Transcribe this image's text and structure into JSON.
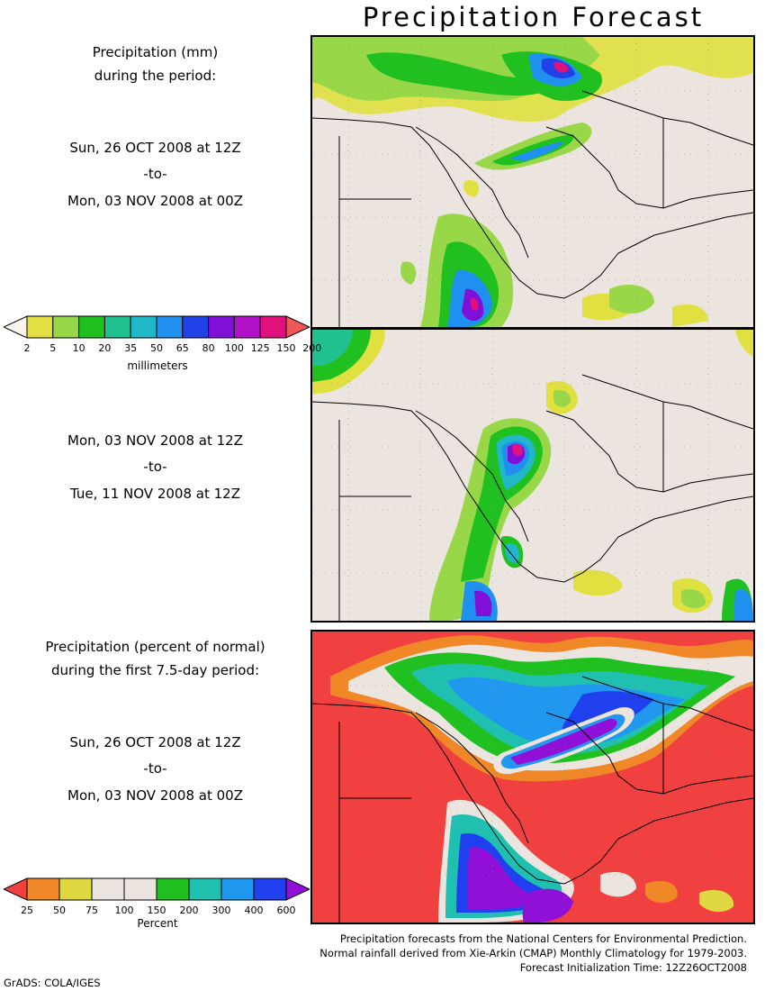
{
  "title": "Precipitation Forecast",
  "panel1": {
    "header_line1": "Precipitation (mm)",
    "header_line2": "during the period:",
    "start": "Sun, 26 OCT 2008 at 12Z",
    "sep": "-to-",
    "end": "Mon, 03 NOV 2008 at 00Z"
  },
  "panel2": {
    "start": "Mon, 03 NOV 2008 at 12Z",
    "sep": "-to-",
    "end": "Tue, 11 NOV 2008 at 12Z"
  },
  "panel3": {
    "header_line1": "Precipitation (percent of normal)",
    "header_line2": "during the first 7.5-day period:",
    "start": "Sun, 26 OCT 2008 at 12Z",
    "sep": "-to-",
    "end": "Mon, 03 NOV 2008 at 00Z"
  },
  "mm_colorbar": {
    "unit": "millimeters",
    "ticks": [
      "2",
      "5",
      "10",
      "20",
      "35",
      "50",
      "65",
      "80",
      "100",
      "125",
      "150",
      "200"
    ],
    "colors": [
      "#f8f4f0",
      "#e0e040",
      "#98d848",
      "#20c020",
      "#20c090",
      "#20b8c8",
      "#2090f0",
      "#2040e8",
      "#8010d8",
      "#b010c8",
      "#e0107c",
      "#f05858"
    ]
  },
  "pct_colorbar": {
    "unit": "Percent",
    "ticks": [
      "25",
      "50",
      "75",
      "100",
      "150",
      "200",
      "300",
      "400",
      "600"
    ],
    "colors": [
      "#f04040",
      "#f08828",
      "#e0d840",
      "#ece4de",
      "#ece4de",
      "#20c020",
      "#20c0b0",
      "#2098f0",
      "#2040f0",
      "#9010d8"
    ]
  },
  "footer": {
    "line1": "Precipitation forecasts from the National Centers for Environmental Prediction.",
    "line2": "Normal rainfall derived from Xie-Arkin (CMAP) Monthly Climatology for 1979-2003.",
    "line3": "Forecast Initialization Time: 12Z26OCT2008"
  },
  "credit": "GrADS: COLA/IGES",
  "colors": {
    "land": "#ece4de",
    "anomaly_dry": "#f04040"
  }
}
